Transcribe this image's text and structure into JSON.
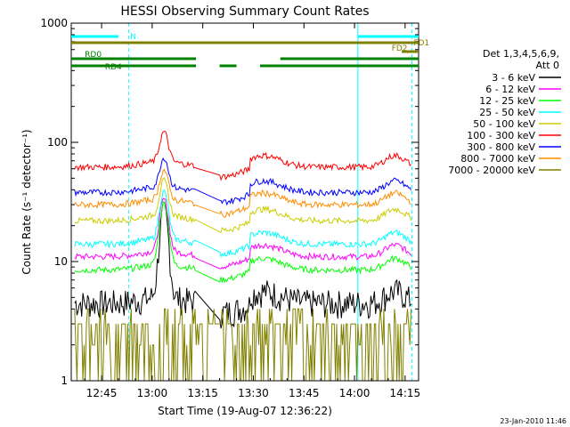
{
  "chart_data": {
    "type": "line",
    "title": "HESSI Observing Summary Count Rates",
    "xlabel": "Start Time (19-Aug-07 12:36:22)",
    "ylabel": "Count Rate (s⁻¹ detector⁻¹)",
    "y_scale": "log",
    "ylim": [
      1,
      1000
    ],
    "xlim_minutes": [
      36,
      139
    ],
    "x_ticks": [
      {
        "label": "12:45",
        "min": 45
      },
      {
        "label": "13:00",
        "min": 60
      },
      {
        "label": "13:15",
        "min": 75
      },
      {
        "label": "13:30",
        "min": 90
      },
      {
        "label": "13:45",
        "min": 105
      },
      {
        "label": "14:00",
        "min": 120
      },
      {
        "label": "14:15",
        "min": 135
      }
    ],
    "y_ticks": [
      {
        "label": "1",
        "value": 1
      },
      {
        "label": "10",
        "value": 10
      },
      {
        "label": "100",
        "value": 100
      },
      {
        "label": "1000",
        "value": 1000
      }
    ],
    "legend": {
      "title_line1": "Det 1,3,4,5,6,9,",
      "title_line2": "Att 0",
      "placement": "right"
    },
    "series": [
      {
        "name": "3 - 6 keV",
        "color": "#000000",
        "level": 4.5,
        "peak": 25
      },
      {
        "name": "6 - 12 keV",
        "color": "#ff00ff",
        "level": 11,
        "peak": 32
      },
      {
        "name": "12 - 25 keV",
        "color": "#00ff00",
        "level": 8.5,
        "peak": 30
      },
      {
        "name": "25 - 50 keV",
        "color": "#00ffff",
        "level": 14,
        "peak": 37
      },
      {
        "name": "50 - 100 keV",
        "color": "#cccc00",
        "level": 22,
        "peak": 45
      },
      {
        "name": "100 - 300 keV",
        "color": "#ff0000",
        "level": 62,
        "peak": 115
      },
      {
        "name": "300 - 800 keV",
        "color": "#0000ff",
        "level": 38,
        "peak": 70
      },
      {
        "name": "800 - 7000 keV",
        "color": "#ff8c00",
        "level": 30,
        "peak": 55
      },
      {
        "name": "7000 - 20000 keV",
        "color": "#808000",
        "level": 2.5,
        "peak": 3
      }
    ],
    "flags": [
      {
        "label": "N",
        "color": "#00ffff",
        "segments": [
          [
            36,
            50
          ],
          [
            121,
            139
          ]
        ]
      },
      {
        "label": "FD1",
        "color": "#808000",
        "segments": [
          [
            36,
            139
          ]
        ]
      },
      {
        "label": "FD2",
        "color": "#808000",
        "segments": [
          [
            134,
            139
          ]
        ]
      },
      {
        "label": "RD0",
        "color": "#008000",
        "segments": [
          [
            36,
            73
          ],
          [
            98,
            139
          ]
        ]
      },
      {
        "label": "RD4",
        "color": "#008000",
        "segments": [
          [
            36,
            73
          ],
          [
            80,
            85
          ],
          [
            92,
            139
          ]
        ]
      }
    ],
    "vlines_solid": [
      36,
      121
    ],
    "vlines_dashed": [
      53,
      137
    ],
    "footer_date": "23-Jan-2010 11:46"
  }
}
